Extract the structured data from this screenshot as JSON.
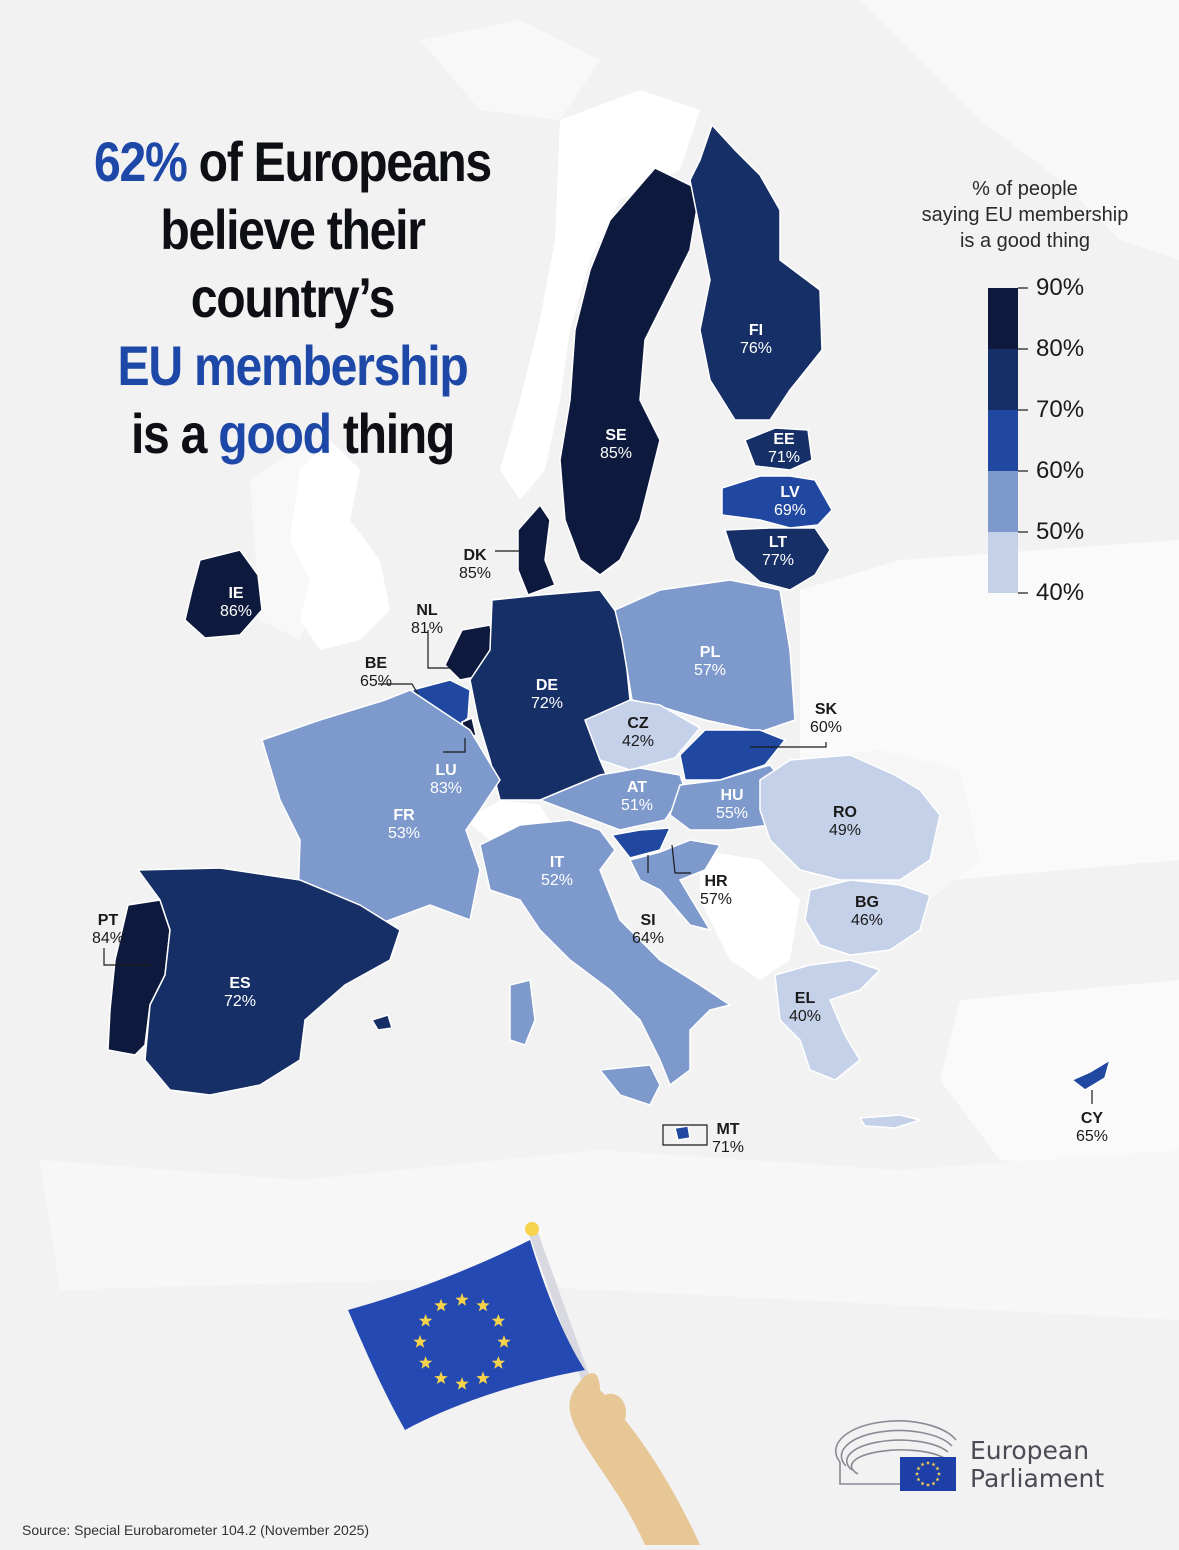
{
  "headline": {
    "pct": "62%",
    "line1_rest": " of Europeans",
    "line2": "believe their country’s",
    "line3": "EU membership",
    "line4_a": "is a ",
    "line4_b": "good",
    "line4_c": " thing"
  },
  "legend": {
    "title_1": "% of people",
    "title_2": "saying EU membership",
    "title_3": "is a good thing",
    "ticks": [
      "90%",
      "80%",
      "70%",
      "60%",
      "50%",
      "40%"
    ],
    "colors": [
      "#0e1a3d",
      "#162f66",
      "#2148a0",
      "#7e99cc",
      "#c5d1e8"
    ]
  },
  "countries": [
    {
      "code": "SE",
      "value": "85%"
    },
    {
      "code": "FI",
      "value": "76%"
    },
    {
      "code": "EE",
      "value": "71%"
    },
    {
      "code": "LV",
      "value": "69%"
    },
    {
      "code": "LT",
      "value": "77%"
    },
    {
      "code": "DK",
      "value": "85%"
    },
    {
      "code": "IE",
      "value": "86%"
    },
    {
      "code": "NL",
      "value": "81%"
    },
    {
      "code": "BE",
      "value": "65%"
    },
    {
      "code": "LU",
      "value": "83%"
    },
    {
      "code": "DE",
      "value": "72%"
    },
    {
      "code": "PL",
      "value": "57%"
    },
    {
      "code": "CZ",
      "value": "42%"
    },
    {
      "code": "SK",
      "value": "60%"
    },
    {
      "code": "AT",
      "value": "51%"
    },
    {
      "code": "HU",
      "value": "55%"
    },
    {
      "code": "RO",
      "value": "49%"
    },
    {
      "code": "FR",
      "value": "53%"
    },
    {
      "code": "IT",
      "value": "52%"
    },
    {
      "code": "SI",
      "value": "64%"
    },
    {
      "code": "HR",
      "value": "57%"
    },
    {
      "code": "BG",
      "value": "46%"
    },
    {
      "code": "PT",
      "value": "84%"
    },
    {
      "code": "ES",
      "value": "72%"
    },
    {
      "code": "EL",
      "value": "40%"
    },
    {
      "code": "MT",
      "value": "71%"
    },
    {
      "code": "CY",
      "value": "65%"
    }
  ],
  "logo": {
    "line1": "European",
    "line2": "Parliament"
  },
  "source": "Source: Special Eurobarometer 104.2 (November 2025)"
}
